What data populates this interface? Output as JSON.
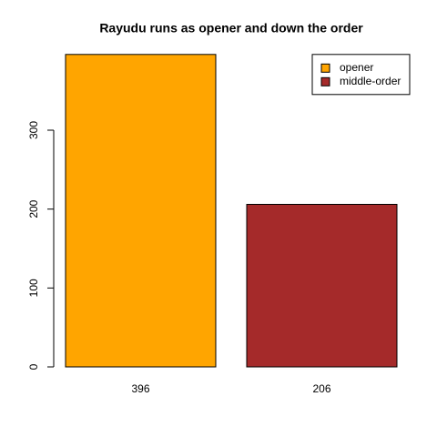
{
  "chart_data": {
    "type": "bar",
    "title": "Rayudu runs as opener and down the order",
    "categories": [
      "396",
      "206"
    ],
    "values": [
      396,
      206
    ],
    "colors": [
      "#ffa500",
      "#a52a2a"
    ],
    "legend": {
      "labels": [
        "opener",
        "middle-order"
      ],
      "position": "topright"
    },
    "ylim": [
      0,
      396
    ],
    "yticks": [
      0,
      100,
      200,
      300
    ]
  }
}
